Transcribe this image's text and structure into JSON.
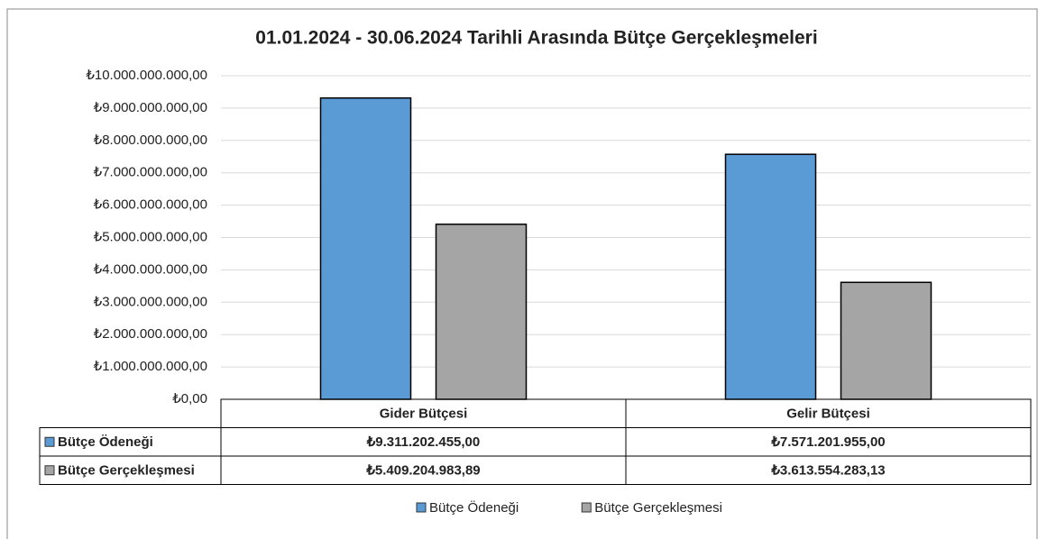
{
  "chart_data": {
    "type": "bar",
    "title": "01.01.2024 - 30.06.2024 Tarihli Arasında  Bütçe Gerçekleşmeleri",
    "categories": [
      "Gider Bütçesi",
      "Gelir Bütçesi"
    ],
    "series": [
      {
        "name": "Bütçe Ödeneği",
        "color": "#5b9bd5",
        "values": [
          9311202455.0,
          7571201955.0
        ],
        "value_labels": [
          "₺9.311.202.455,00",
          "₺7.571.201.955,00"
        ]
      },
      {
        "name": "Bütçe Gerçekleşmesi",
        "color": "#a5a5a5",
        "values": [
          5409204983.89,
          3613554283.13
        ],
        "value_labels": [
          "₺5.409.204.983,89",
          "₺3.613.554.283,13"
        ]
      }
    ],
    "ylim": [
      0,
      10000000000
    ],
    "yticks": [
      {
        "value": 0,
        "label": "₺0,00"
      },
      {
        "value": 1000000000,
        "label": "₺1.000.000.000,00"
      },
      {
        "value": 2000000000,
        "label": "₺2.000.000.000,00"
      },
      {
        "value": 3000000000,
        "label": "₺3.000.000.000,00"
      },
      {
        "value": 4000000000,
        "label": "₺4.000.000.000,00"
      },
      {
        "value": 5000000000,
        "label": "₺5.000.000.000,00"
      },
      {
        "value": 6000000000,
        "label": "₺6.000.000.000,00"
      },
      {
        "value": 7000000000,
        "label": "₺7.000.000.000,00"
      },
      {
        "value": 8000000000,
        "label": "₺8.000.000.000,00"
      },
      {
        "value": 9000000000,
        "label": "₺9.000.000.000,00"
      },
      {
        "value": 10000000000,
        "label": "₺10.000.000.000,00"
      }
    ],
    "grid": true,
    "legend": "bottom"
  }
}
